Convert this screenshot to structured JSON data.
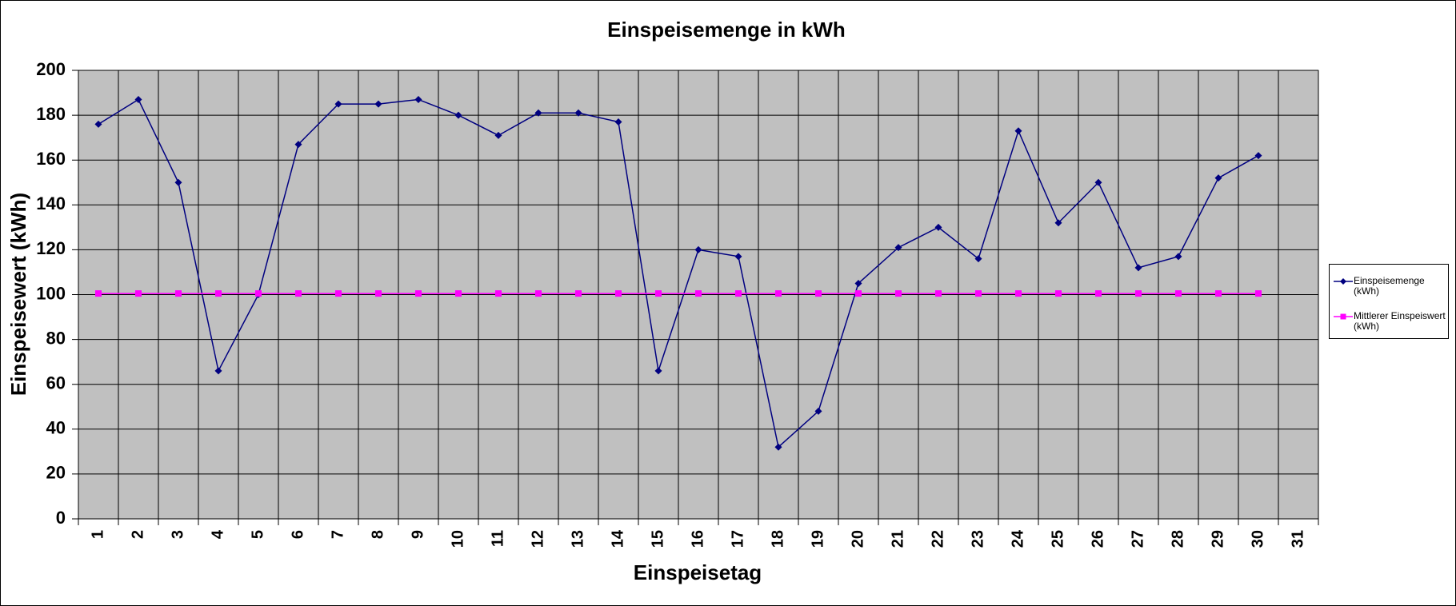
{
  "chart_data": {
    "type": "line",
    "title": "Einspeisemenge in kWh",
    "x_label": "Einspeisetag",
    "y_label": "Einspeisewert  (kWh)",
    "categories": [
      "1",
      "2",
      "3",
      "4",
      "5",
      "6",
      "7",
      "8",
      "9",
      "10",
      "11",
      "12",
      "13",
      "14",
      "15",
      "16",
      "17",
      "18",
      "19",
      "20",
      "21",
      "22",
      "23",
      "24",
      "25",
      "26",
      "27",
      "28",
      "29",
      "30",
      "31"
    ],
    "series": [
      {
        "name": "Einspeisemenge (kWh)",
        "color": "#000080",
        "marker": "diamond",
        "values": [
          176,
          187,
          150,
          66,
          100,
          167,
          185,
          185,
          187,
          180,
          171,
          181,
          181,
          177,
          66,
          120,
          117,
          32,
          48,
          105,
          121,
          130,
          116,
          173,
          132,
          150,
          112,
          117,
          152,
          162,
          null
        ]
      },
      {
        "name": "Mittlerer Einspeiswert (kWh)",
        "color": "#ff00ff",
        "marker": "square",
        "values": [
          100.5,
          100.5,
          100.5,
          100.5,
          100.5,
          100.5,
          100.5,
          100.5,
          100.5,
          100.5,
          100.5,
          100.5,
          100.5,
          100.5,
          100.5,
          100.5,
          100.5,
          100.5,
          100.5,
          100.5,
          100.5,
          100.5,
          100.5,
          100.5,
          100.5,
          100.5,
          100.5,
          100.5,
          100.5,
          100.5,
          null
        ]
      }
    ],
    "ylim": [
      0,
      200
    ],
    "yticks": [
      0,
      20,
      40,
      60,
      80,
      100,
      120,
      140,
      160,
      180,
      200
    ],
    "grid": true,
    "legend": "right",
    "plot_background": "#c0c0c0"
  }
}
